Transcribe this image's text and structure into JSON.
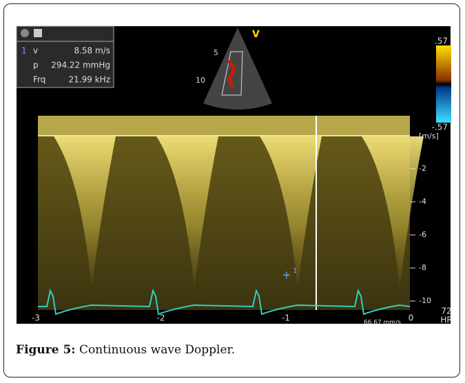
{
  "readout": {
    "rows": [
      {
        "index": "1",
        "label": "v",
        "value": "8.58 m/s"
      },
      {
        "label": "p",
        "value": "294.22 mmHg"
      },
      {
        "label": "Frq",
        "value": "21.99 kHz"
      }
    ]
  },
  "sector": {
    "mode": "V",
    "depths": [
      "5",
      "10"
    ]
  },
  "color_scale": {
    "max": ".57",
    "min": "-.57"
  },
  "velocity_axis": {
    "unit": "[m/s]",
    "ticks": [
      "-2",
      "-4",
      "-6",
      "-8",
      "-10"
    ]
  },
  "time_axis": {
    "ticks": [
      "-3",
      "-2",
      "-1",
      "0"
    ],
    "sweep": "66.67 mm/s"
  },
  "heart_rate": {
    "value": "72",
    "label": "HR"
  },
  "cursor": {
    "label": "1"
  },
  "caption": {
    "label": "Figure 5:",
    "text": "Continuous wave Doppler."
  }
}
